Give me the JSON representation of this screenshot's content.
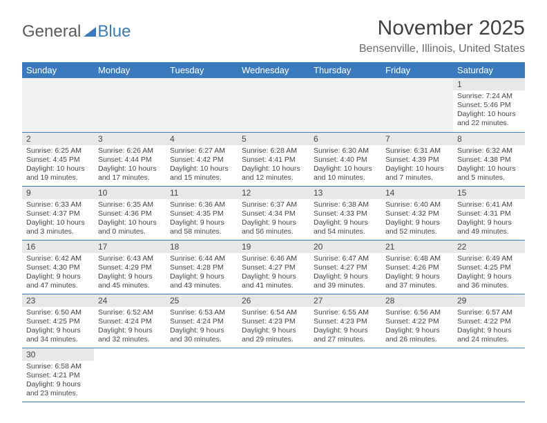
{
  "logo": {
    "part1": "General",
    "part2": "Blue"
  },
  "title": "November 2025",
  "location": "Bensenville, Illinois, United States",
  "colors": {
    "header_bg": "#3a7abd",
    "header_fg": "#ffffff",
    "daynum_bg": "#e8e8e8",
    "empty_bg": "#f2f2f2",
    "text": "#444444",
    "rule": "#3a7abd"
  },
  "dayHeaders": [
    "Sunday",
    "Monday",
    "Tuesday",
    "Wednesday",
    "Thursday",
    "Friday",
    "Saturday"
  ],
  "weeks": [
    [
      null,
      null,
      null,
      null,
      null,
      null,
      {
        "n": "1",
        "sr": "7:24 AM",
        "ss": "5:46 PM",
        "dl": "10 hours and 22 minutes."
      }
    ],
    [
      {
        "n": "2",
        "sr": "6:25 AM",
        "ss": "4:45 PM",
        "dl": "10 hours and 19 minutes."
      },
      {
        "n": "3",
        "sr": "6:26 AM",
        "ss": "4:44 PM",
        "dl": "10 hours and 17 minutes."
      },
      {
        "n": "4",
        "sr": "6:27 AM",
        "ss": "4:42 PM",
        "dl": "10 hours and 15 minutes."
      },
      {
        "n": "5",
        "sr": "6:28 AM",
        "ss": "4:41 PM",
        "dl": "10 hours and 12 minutes."
      },
      {
        "n": "6",
        "sr": "6:30 AM",
        "ss": "4:40 PM",
        "dl": "10 hours and 10 minutes."
      },
      {
        "n": "7",
        "sr": "6:31 AM",
        "ss": "4:39 PM",
        "dl": "10 hours and 7 minutes."
      },
      {
        "n": "8",
        "sr": "6:32 AM",
        "ss": "4:38 PM",
        "dl": "10 hours and 5 minutes."
      }
    ],
    [
      {
        "n": "9",
        "sr": "6:33 AM",
        "ss": "4:37 PM",
        "dl": "10 hours and 3 minutes."
      },
      {
        "n": "10",
        "sr": "6:35 AM",
        "ss": "4:36 PM",
        "dl": "10 hours and 0 minutes."
      },
      {
        "n": "11",
        "sr": "6:36 AM",
        "ss": "4:35 PM",
        "dl": "9 hours and 58 minutes."
      },
      {
        "n": "12",
        "sr": "6:37 AM",
        "ss": "4:34 PM",
        "dl": "9 hours and 56 minutes."
      },
      {
        "n": "13",
        "sr": "6:38 AM",
        "ss": "4:33 PM",
        "dl": "9 hours and 54 minutes."
      },
      {
        "n": "14",
        "sr": "6:40 AM",
        "ss": "4:32 PM",
        "dl": "9 hours and 52 minutes."
      },
      {
        "n": "15",
        "sr": "6:41 AM",
        "ss": "4:31 PM",
        "dl": "9 hours and 49 minutes."
      }
    ],
    [
      {
        "n": "16",
        "sr": "6:42 AM",
        "ss": "4:30 PM",
        "dl": "9 hours and 47 minutes."
      },
      {
        "n": "17",
        "sr": "6:43 AM",
        "ss": "4:29 PM",
        "dl": "9 hours and 45 minutes."
      },
      {
        "n": "18",
        "sr": "6:44 AM",
        "ss": "4:28 PM",
        "dl": "9 hours and 43 minutes."
      },
      {
        "n": "19",
        "sr": "6:46 AM",
        "ss": "4:27 PM",
        "dl": "9 hours and 41 minutes."
      },
      {
        "n": "20",
        "sr": "6:47 AM",
        "ss": "4:27 PM",
        "dl": "9 hours and 39 minutes."
      },
      {
        "n": "21",
        "sr": "6:48 AM",
        "ss": "4:26 PM",
        "dl": "9 hours and 37 minutes."
      },
      {
        "n": "22",
        "sr": "6:49 AM",
        "ss": "4:25 PM",
        "dl": "9 hours and 36 minutes."
      }
    ],
    [
      {
        "n": "23",
        "sr": "6:50 AM",
        "ss": "4:25 PM",
        "dl": "9 hours and 34 minutes."
      },
      {
        "n": "24",
        "sr": "6:52 AM",
        "ss": "4:24 PM",
        "dl": "9 hours and 32 minutes."
      },
      {
        "n": "25",
        "sr": "6:53 AM",
        "ss": "4:24 PM",
        "dl": "9 hours and 30 minutes."
      },
      {
        "n": "26",
        "sr": "6:54 AM",
        "ss": "4:23 PM",
        "dl": "9 hours and 29 minutes."
      },
      {
        "n": "27",
        "sr": "6:55 AM",
        "ss": "4:23 PM",
        "dl": "9 hours and 27 minutes."
      },
      {
        "n": "28",
        "sr": "6:56 AM",
        "ss": "4:22 PM",
        "dl": "9 hours and 26 minutes."
      },
      {
        "n": "29",
        "sr": "6:57 AM",
        "ss": "4:22 PM",
        "dl": "9 hours and 24 minutes."
      }
    ],
    [
      {
        "n": "30",
        "sr": "6:58 AM",
        "ss": "4:21 PM",
        "dl": "9 hours and 23 minutes."
      },
      null,
      null,
      null,
      null,
      null,
      null
    ]
  ],
  "labels": {
    "sunrise": "Sunrise:",
    "sunset": "Sunset:",
    "daylight": "Daylight:"
  }
}
